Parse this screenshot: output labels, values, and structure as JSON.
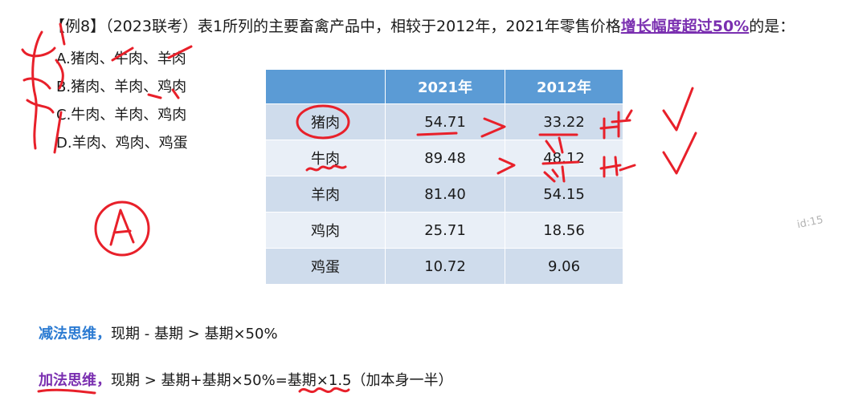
{
  "question": {
    "prefix": "【例8】（2023联考）表1所列的主要畜禽产品中，相较于2012年，2021年零售价格",
    "highlight": "增长幅度超过50%",
    "suffix": "的是："
  },
  "options": [
    {
      "label": "A.猪肉、牛肉、羊肉"
    },
    {
      "label": "B.猪肉、羊肉、鸡肉"
    },
    {
      "label": "C.牛肉、羊肉、鸡肉"
    },
    {
      "label": "D.羊肉、鸡肉、鸡蛋"
    }
  ],
  "table": {
    "headers": [
      "",
      "2021年",
      "2012年"
    ],
    "rows": [
      {
        "product": "猪肉",
        "y2021": "54.71",
        "y2012": "33.22"
      },
      {
        "product": "牛肉",
        "y2021": "89.48",
        "y2012": "48.12"
      },
      {
        "product": "羊肉",
        "y2021": "81.40",
        "y2012": "54.15"
      },
      {
        "product": "鸡肉",
        "y2021": "25.71",
        "y2012": "18.56"
      },
      {
        "product": "鸡蛋",
        "y2021": "10.72",
        "y2012": "9.06"
      }
    ]
  },
  "watermark": "id:15",
  "methods": {
    "subtraction": {
      "label": "减法思维，",
      "text": "现期 - 基期 > 基期×50%"
    },
    "addition": {
      "label": "加法思维，",
      "text": "现期 > 基期+基期×50%=基期×1.5（加本身一半）"
    }
  },
  "annotations": {
    "ink_color": "#e8202a",
    "circled_answer": "A"
  }
}
